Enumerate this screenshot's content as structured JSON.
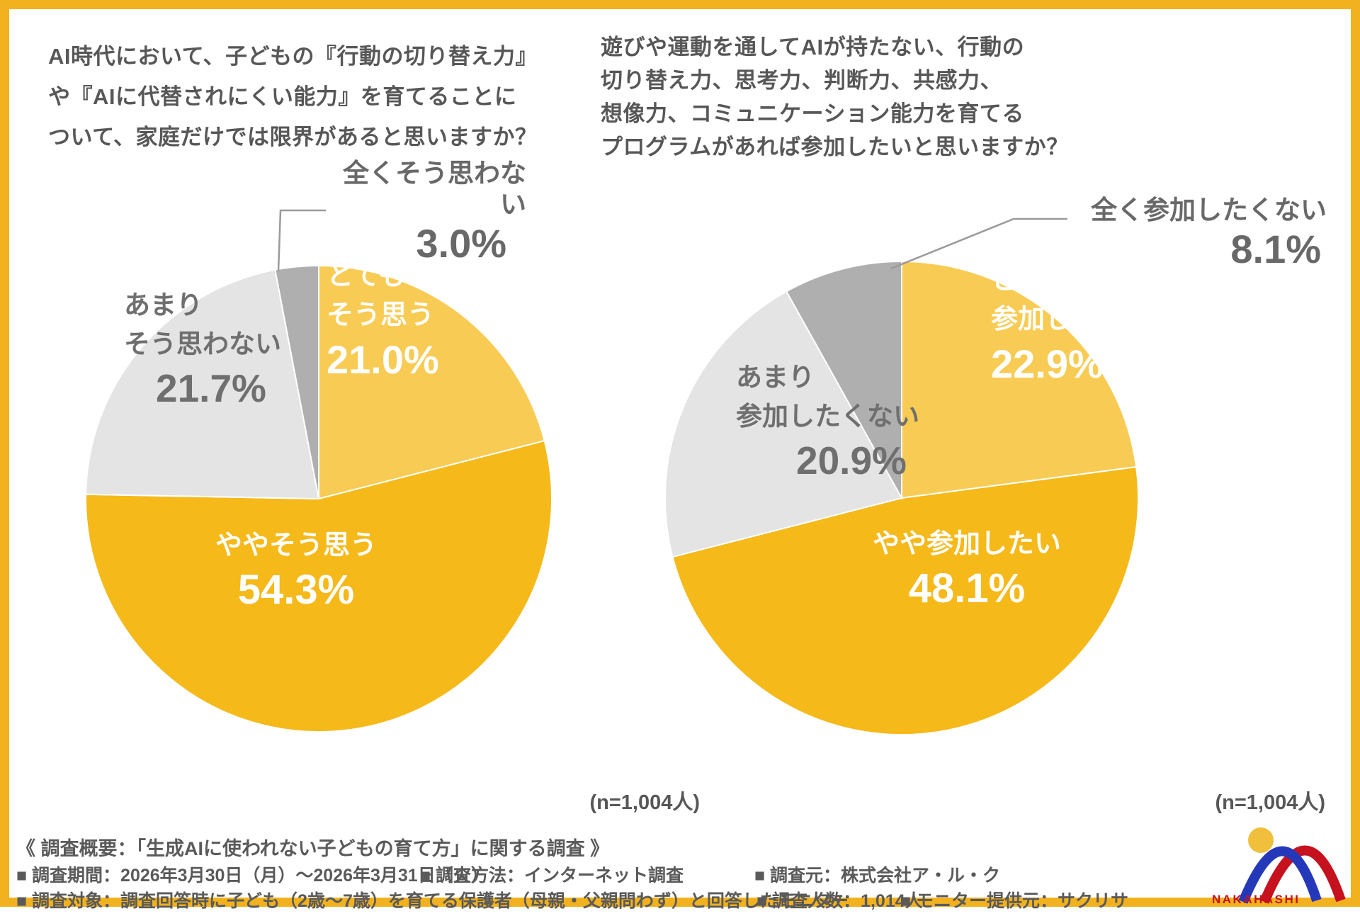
{
  "page": {
    "border_color": "#F2B11E",
    "background": "#FFFFFF"
  },
  "chart_data": [
    {
      "type": "pie",
      "title": "AI時代において、子どもの『行動の切り替え力』や『AIに代替されにくい能力』を育てることについて、家庭だけでは限界があると思いますか？",
      "title_lines": [
        "AI時代において、子どもの『行動の切り替え力』",
        "や『AIに代替されにくい能力』を育てることに",
        "ついて、家庭だけでは限界があると思いますか？"
      ],
      "n_label": "(n=1,004人)",
      "start_angle_deg": 0,
      "direction": "clockwise",
      "legend_position": "inside",
      "segments": [
        {
          "label": "とてもそう思う",
          "label_lines": [
            "とても",
            "そう思う"
          ],
          "value": 21.0,
          "pct": "21.0%",
          "color": "#F8CB54",
          "text_color": "#FFFFFF"
        },
        {
          "label": "ややそう思う",
          "label_lines": [
            "ややそう思う"
          ],
          "value": 54.3,
          "pct": "54.3%",
          "color": "#F5B91A",
          "text_color": "#FFFFFF"
        },
        {
          "label": "あまりそう思わない",
          "label_lines": [
            "あまり",
            "そう思わない"
          ],
          "value": 21.7,
          "pct": "21.7%",
          "color": "#E4E4E4",
          "text_color": "#6F6F6F"
        },
        {
          "label": "全くそう思わない",
          "label_lines": [
            "全くそう思わない"
          ],
          "value": 3.0,
          "pct": "3.0%",
          "color": "#AFAFAF",
          "text_color": "#686868",
          "callout": true
        }
      ]
    },
    {
      "type": "pie",
      "title": "遊びや運動を通してAIが持たない、行動の切り替え力、思考力、判断力、共感力、想像力、コミュニケーション能力を育てるプログラムがあれば参加したいと思いますか？",
      "title_lines": [
        "遊びや運動を通してAIが持たない、行動の",
        "切り替え力、思考力、判断力、共感力、",
        "想像力、コミュニケーション能力を育てる",
        "プログラムがあれば参加したいと思いますか？"
      ],
      "n_label": "(n=1,004人)",
      "start_angle_deg": 0,
      "direction": "clockwise",
      "legend_position": "inside",
      "segments": [
        {
          "label": "とても参加したい",
          "label_lines": [
            "とても",
            "参加したい"
          ],
          "value": 22.9,
          "pct": "22.9%",
          "color": "#F8CB54",
          "text_color": "#FFFFFF"
        },
        {
          "label": "やや参加したい",
          "label_lines": [
            "やや参加したい"
          ],
          "value": 48.1,
          "pct": "48.1%",
          "color": "#F5B91A",
          "text_color": "#FFFFFF"
        },
        {
          "label": "あまり参加したくない",
          "label_lines": [
            "あまり",
            "参加したくない"
          ],
          "value": 20.9,
          "pct": "20.9%",
          "color": "#E4E4E4",
          "text_color": "#6F6F6F"
        },
        {
          "label": "全く参加したくない",
          "label_lines": [
            "全く参加したくない"
          ],
          "value": 8.1,
          "pct": "8.1%",
          "color": "#AFAFAF",
          "text_color": "#686868",
          "callout": true
        }
      ]
    }
  ],
  "footer": {
    "summary": "《 調査概要：「生成AIに使われない子どもの育て方」に関する調査 》",
    "row1": [
      "■ 調査期間：2026年3月30日（月）～2026年3月31日（火）",
      "■ 調査方法：インターネット調査",
      "■ 調査元：株式会社ア・ル・ク"
    ],
    "row2": [
      "■ 調査対象：調査回答時に子ども（2歳～7歳）を育てる保護者（母親・父親問わず）と回答したモニター",
      "■ 調査人数：1,014人",
      "■ モニター提供元：サクリサ"
    ]
  },
  "logo": {
    "text": "NAKAHASHI",
    "sun_color": "#F0C03C",
    "arc_blue": "#2638BA",
    "arc_red": "#C6111F",
    "text_color": "#C6111F"
  }
}
